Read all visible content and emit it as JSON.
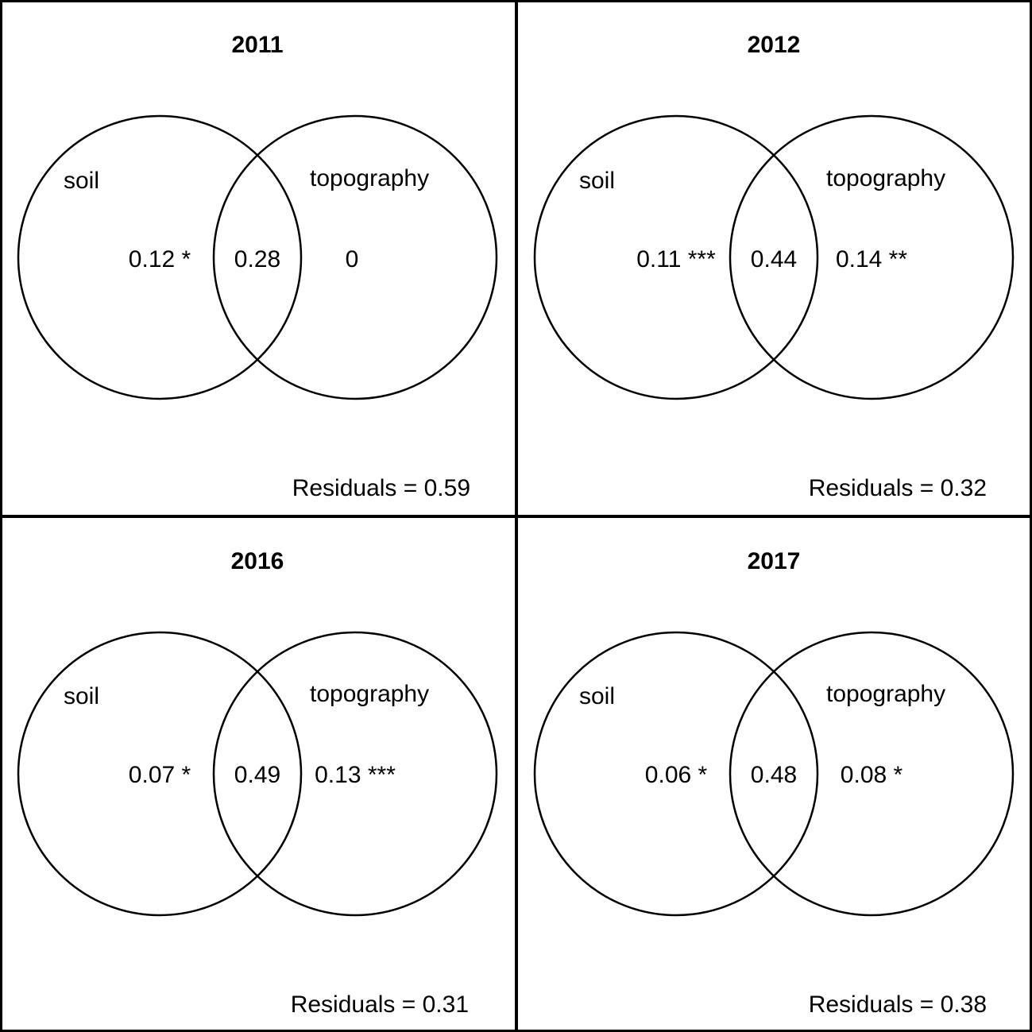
{
  "panels": [
    {
      "title": "2011",
      "left_label": "soil",
      "right_label": "topography",
      "left_value": "0.12 *",
      "shared_value": "0.28",
      "right_value": "0",
      "residuals": "Residuals = 0.59"
    },
    {
      "title": "2012",
      "left_label": "soil",
      "right_label": "topography",
      "left_value": "0.11 ***",
      "shared_value": "0.44",
      "right_value": "0.14 **",
      "residuals": "Residuals = 0.32"
    },
    {
      "title": "2016",
      "left_label": "soil",
      "right_label": "topography",
      "left_value": "0.07 *",
      "shared_value": "0.49",
      "right_value": "0.13 ***",
      "residuals": "Residuals = 0.31"
    },
    {
      "title": "2017",
      "left_label": "soil",
      "right_label": "topography",
      "left_value": "0.06 *",
      "shared_value": "0.48",
      "right_value": "0.08 *",
      "residuals": "Residuals = 0.38"
    }
  ]
}
